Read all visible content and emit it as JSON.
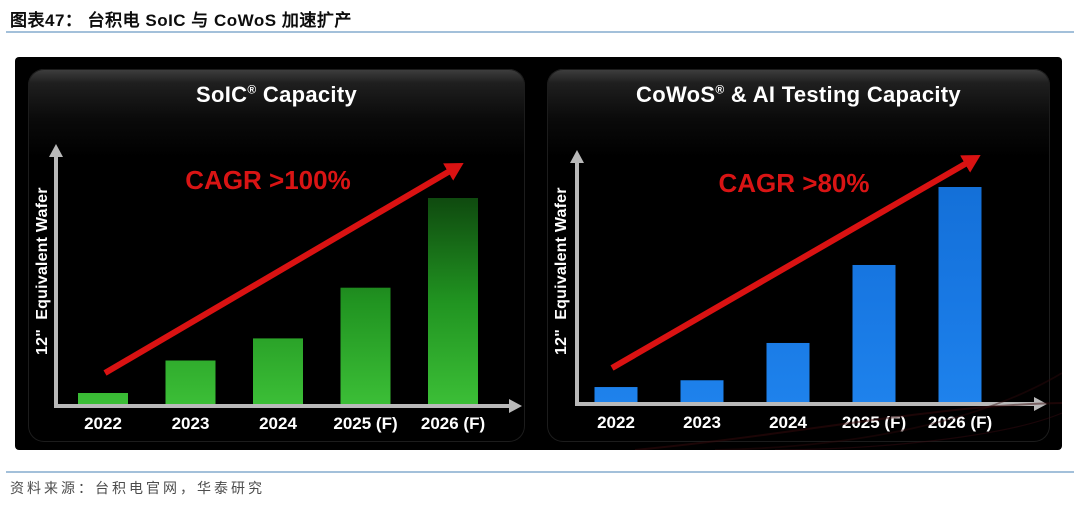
{
  "header": {
    "title": "图表47：  台积电 SoIC 与 CoWoS 加速扩产"
  },
  "footer": {
    "source": "资料来源：台积电官网，华泰研究"
  },
  "colors": {
    "accent_red": "#d91414",
    "axis_grey": "#b9b9b9",
    "green_bar_top": "#0f4a0f",
    "green_bar_bottom": "#3cbf37",
    "blue_bar": "#1878e3",
    "rule_blue": "#a3c0da",
    "panel_bg": "#000000"
  },
  "chart_data": [
    {
      "type": "bar",
      "title": "SoIC® Capacity",
      "title_pre": "SoIC",
      "title_reg": "®",
      "title_post": " Capacity",
      "annotation": "CAGR >100%",
      "ylabel": "12\"  Equivalent Wafer",
      "categories": [
        "2022",
        "2023",
        "2024",
        "2025 (F)",
        "2026 (F)"
      ],
      "values": [
        1.0,
        3.5,
        5.2,
        9.1,
        16.0
      ],
      "value_note": "y-axis unlabeled; values estimated relative to 2022 = 1.0",
      "bar_color": "green",
      "trend": "up"
    },
    {
      "type": "bar",
      "title": "CoWoS® & AI Testing Capacity",
      "title_pre": "CoWoS",
      "title_reg": "®",
      "title_post": " & AI Testing Capacity",
      "annotation": "CAGR >80%",
      "ylabel": "12\"  Equivalent Wafer",
      "categories": [
        "2022",
        "2023",
        "2024",
        "2025 (F)",
        "2026 (F)"
      ],
      "values": [
        1.0,
        1.4,
        3.6,
        8.2,
        12.8
      ],
      "value_note": "y-axis unlabeled; values estimated relative to 2022 = 1.0",
      "bar_color": "blue",
      "trend": "up"
    }
  ]
}
